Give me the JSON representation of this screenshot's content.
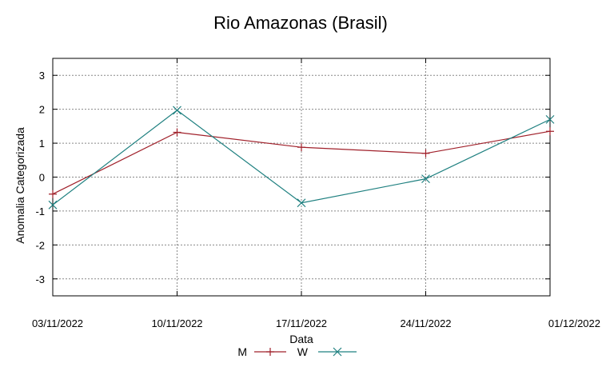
{
  "chart_data": {
    "type": "line",
    "title": "Rio Amazonas (Brasil)",
    "xlabel": "Data",
    "ylabel": "Anomalia Categorizada",
    "categories": [
      "03/11/2022",
      "10/11/2022",
      "17/11/2022",
      "24/11/2022",
      "01/12/2022"
    ],
    "ylim": [
      -3.5,
      3.5
    ],
    "yticks": [
      3,
      2,
      1,
      0,
      -1,
      -2,
      -3
    ],
    "grid": true,
    "legend": "bottom-center",
    "series": [
      {
        "name": "M",
        "marker": "+",
        "color": "#a0202a",
        "values": [
          -0.5,
          1.32,
          0.88,
          0.7,
          1.35
        ]
      },
      {
        "name": "W",
        "marker": "x",
        "color": "#1f8080",
        "values": [
          -0.82,
          1.97,
          -0.76,
          -0.05,
          1.7
        ]
      }
    ]
  }
}
